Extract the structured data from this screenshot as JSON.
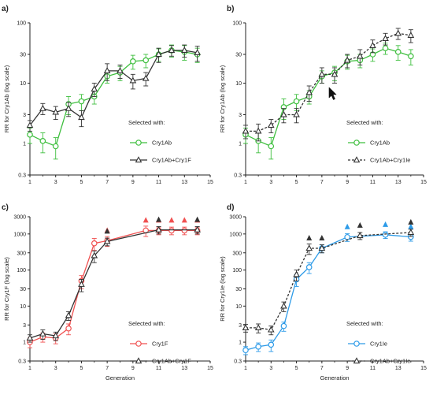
{
  "chart_data": [
    {
      "type": "line",
      "panel_label": "a)",
      "title": "",
      "xlabel": "",
      "ylabel": "RR for Cry1Ab (log scale)",
      "xlim": [
        1,
        15
      ],
      "ylim": [
        0.3,
        100
      ],
      "yscale": "log",
      "x_ticks": [
        1,
        3,
        5,
        7,
        9,
        11,
        13,
        15
      ],
      "y_ticks": [
        0.3,
        1,
        3,
        10,
        30,
        100
      ],
      "y_tick_labels": [
        "0.3",
        "1",
        "3",
        "10",
        "30",
        "100"
      ],
      "legend_title": "Selected with:",
      "legend_position": "lower-right",
      "series": [
        {
          "name": "Cry1Ab",
          "color": "#3fbf3f",
          "marker": "circle",
          "dashed": false,
          "x": [
            1,
            2,
            3,
            4,
            5,
            6,
            7,
            8,
            9,
            10,
            11,
            12,
            13,
            14
          ],
          "y": [
            1.4,
            1.1,
            0.9,
            4.5,
            5,
            6,
            13,
            15,
            23,
            24,
            30,
            35,
            33,
            30
          ],
          "err": [
            0.4,
            0.4,
            0.35,
            1.5,
            1.5,
            1.5,
            3,
            4,
            6,
            6,
            7,
            8,
            9,
            8
          ],
          "arrows": []
        },
        {
          "name": "Cry1Ab+Cry1F",
          "color": "#333333",
          "marker": "triangle",
          "dashed": false,
          "x": [
            1,
            2,
            3,
            4,
            5,
            6,
            7,
            8,
            9,
            10,
            11,
            12,
            13,
            14
          ],
          "y": [
            2,
            3.8,
            3.3,
            3.8,
            2.7,
            8,
            16,
            16,
            11,
            12,
            30,
            35,
            35,
            32
          ],
          "err": [
            0.4,
            0.8,
            0.8,
            1,
            0.8,
            2,
            5,
            4,
            3,
            3,
            8,
            7,
            8,
            9
          ],
          "arrows": []
        }
      ]
    },
    {
      "type": "line",
      "panel_label": "b)",
      "title": "",
      "xlabel": "",
      "ylabel": "RR for Cry1Ab (log scale)",
      "xlim": [
        1,
        15
      ],
      "ylim": [
        0.3,
        100
      ],
      "yscale": "log",
      "x_ticks": [
        1,
        3,
        5,
        7,
        9,
        11,
        13,
        15
      ],
      "y_ticks": [
        0.3,
        1,
        3,
        10,
        30,
        100
      ],
      "y_tick_labels": [
        "0.3",
        "1",
        "3",
        "10",
        "30",
        "100"
      ],
      "legend_title": "Selected with:",
      "legend_position": "lower-right",
      "series": [
        {
          "name": "Cry1Ab",
          "color": "#3fbf3f",
          "marker": "circle",
          "dashed": false,
          "x": [
            1,
            2,
            3,
            4,
            5,
            6,
            7,
            8,
            9,
            10,
            11,
            12,
            13,
            14
          ],
          "y": [
            1.4,
            1.1,
            0.9,
            4,
            5,
            6,
            13,
            15,
            23,
            24,
            30,
            38,
            33,
            28
          ],
          "err": [
            0.4,
            0.4,
            0.35,
            1.5,
            1.5,
            1.5,
            3,
            4,
            6,
            6,
            7,
            8,
            9,
            8
          ],
          "arrows": []
        },
        {
          "name": "Cry1Ab+Cry1Ie",
          "color": "#333333",
          "marker": "triangle",
          "dashed": true,
          "x": [
            1,
            2,
            3,
            4,
            5,
            6,
            7,
            8,
            9,
            10,
            11,
            12,
            13,
            14
          ],
          "y": [
            1.6,
            1.6,
            2,
            3,
            3,
            7,
            14,
            14,
            24,
            28,
            42,
            55,
            67,
            62
          ],
          "err": [
            0.4,
            0.5,
            0.5,
            0.8,
            0.8,
            2,
            4,
            4,
            6,
            8,
            10,
            12,
            14,
            15
          ],
          "arrows": []
        }
      ]
    },
    {
      "type": "line",
      "panel_label": "c)",
      "title": "",
      "xlabel": "Generation",
      "ylabel": "RR for Cry1F (log scale)",
      "xlim": [
        1,
        15
      ],
      "ylim": [
        0.3,
        3000
      ],
      "yscale": "log",
      "x_ticks": [
        1,
        3,
        5,
        7,
        9,
        11,
        13,
        15
      ],
      "y_ticks": [
        0.3,
        1,
        3,
        10,
        30,
        100,
        300,
        1000,
        3000
      ],
      "y_tick_labels": [
        "0.3",
        "1",
        "3",
        "10",
        "30",
        "100",
        "300",
        "1000",
        "3000"
      ],
      "legend_title": "Selected with:",
      "legend_position": "lower-right",
      "series": [
        {
          "name": "Cry1F",
          "color": "#f05050",
          "marker": "circle",
          "dashed": false,
          "x": [
            1,
            2,
            3,
            4,
            5,
            6,
            7,
            10,
            11,
            12,
            13,
            14
          ],
          "y": [
            1,
            1.4,
            1.3,
            2.4,
            50,
            550,
            650,
            1250,
            1250,
            1250,
            1250,
            1250
          ],
          "err": [
            0.3,
            0.4,
            0.4,
            0.8,
            20,
            200,
            200,
            400,
            300,
            300,
            300,
            300
          ],
          "arrows": [
            7,
            10,
            11,
            12,
            13,
            14
          ]
        },
        {
          "name": "Cry1Ab+Cry1F",
          "color": "#333333",
          "marker": "triangle",
          "dashed": false,
          "x": [
            1,
            2,
            3,
            4,
            5,
            6,
            7,
            11,
            14
          ],
          "y": [
            1.3,
            1.7,
            1.5,
            5.5,
            40,
            250,
            620,
            1300,
            1300
          ],
          "err": [
            0.3,
            0.5,
            0.4,
            1.5,
            15,
            90,
            150,
            300,
            300
          ],
          "arrows": [
            7,
            11,
            14
          ]
        }
      ]
    },
    {
      "type": "line",
      "panel_label": "d)",
      "title": "",
      "xlabel": "Generation",
      "ylabel": "RR for Cry1Ie (log scale)",
      "xlim": [
        1,
        15
      ],
      "ylim": [
        0.3,
        3000
      ],
      "yscale": "log",
      "x_ticks": [
        1,
        3,
        5,
        7,
        9,
        11,
        13,
        15
      ],
      "y_ticks": [
        0.3,
        1,
        3,
        10,
        30,
        100,
        300,
        1000,
        3000
      ],
      "y_tick_labels": [
        "0.3",
        "1",
        "3",
        "10",
        "30",
        "100",
        "300",
        "1000",
        "3000"
      ],
      "legend_title": "Selected with:",
      "legend_position": "lower-right",
      "series": [
        {
          "name": "Cry1Ie",
          "color": "#2d9be8",
          "marker": "circle",
          "dashed": false,
          "x": [
            1,
            2,
            3,
            4,
            5,
            6,
            7,
            9,
            12,
            14
          ],
          "y": [
            0.6,
            0.75,
            0.85,
            2.8,
            55,
            120,
            400,
            820,
            950,
            830
          ],
          "err": [
            0.15,
            0.2,
            0.3,
            0.8,
            20,
            40,
            100,
            200,
            200,
            200
          ],
          "arrows": [
            9,
            12,
            14
          ]
        },
        {
          "name": "Cry1Ab+Cry1Ie",
          "color": "#333333",
          "marker": "triangle",
          "dashed": true,
          "x": [
            1,
            2,
            3,
            4,
            5,
            6,
            7,
            10,
            14
          ],
          "y": [
            2.5,
            2.5,
            2.2,
            10,
            75,
            400,
            400,
            900,
            1100
          ],
          "err": [
            0.6,
            0.7,
            0.6,
            3,
            25,
            130,
            100,
            200,
            250
          ],
          "arrows": [
            6,
            7,
            10,
            14
          ]
        }
      ]
    }
  ],
  "cursor_icon": "mouse-pointer-icon"
}
